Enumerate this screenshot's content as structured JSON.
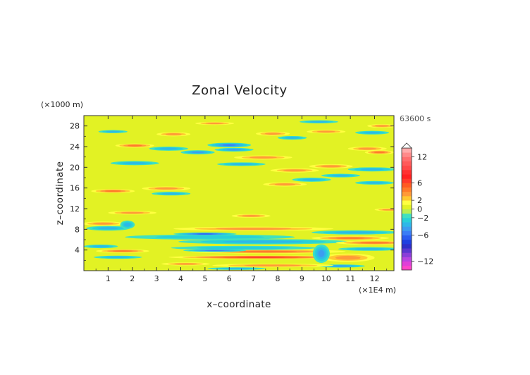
{
  "chart_data": {
    "type": "heatmap",
    "title": "Zonal Velocity",
    "xlabel": "x–coordinate",
    "ylabel": "z–coordinate",
    "x_unit": "(×1E4 m)",
    "y_unit": "(×1000 m)",
    "time_label": "63600 s",
    "xlim": [
      0,
      12.8
    ],
    "ylim": [
      0,
      30
    ],
    "x_ticks": [
      1,
      2,
      3,
      4,
      5,
      6,
      7,
      8,
      9,
      10,
      11,
      12
    ],
    "y_ticks": [
      4,
      8,
      12,
      16,
      20,
      24,
      28
    ],
    "colorbar": {
      "levels": [
        -14,
        -13,
        -12,
        -11,
        -10,
        -9,
        -8,
        -7,
        -6,
        -5,
        -4,
        -3,
        -2,
        -1,
        0,
        1,
        2,
        3,
        4,
        5,
        6,
        7,
        8,
        9,
        10,
        11,
        12,
        13,
        14
      ],
      "colors": [
        "#ff44c8",
        "#e040d8",
        "#b844e0",
        "#8a3ed8",
        "#5a36d0",
        "#2e2ec8",
        "#1f3fe0",
        "#2a5cf0",
        "#3a7df6",
        "#3c9cf0",
        "#2eb8e8",
        "#28d0d8",
        "#40e0c0",
        "#b8ee50",
        "#e2f224",
        "#ffff40",
        "#ffc830",
        "#ff9a38",
        "#ff7a2a",
        "#ff5a22",
        "#ff3a2a",
        "#ff2020",
        "#ff3030",
        "#ff4848",
        "#ff5a5a",
        "#ff6e6e",
        "#ff8a8a",
        "#ffaaaa"
      ],
      "tick_labels": [
        "12",
        "6",
        "2",
        "0",
        "−2",
        "−6",
        "−12"
      ],
      "tick_values": [
        12,
        6,
        2,
        0,
        -2,
        -6,
        -12
      ],
      "extend_max": true
    },
    "anomalies": [
      {
        "x": 7.3,
        "z": 2.6,
        "value": 6,
        "rx": 3.8,
        "rz": 0.35
      },
      {
        "x": 7.6,
        "z": 3.7,
        "value": 4,
        "rx": 3.2,
        "rz": 0.4
      },
      {
        "x": 7.4,
        "z": 5.6,
        "value": -3,
        "rx": 3.5,
        "rz": 0.5
      },
      {
        "x": 5.2,
        "z": 6.5,
        "value": -2,
        "rx": 3.5,
        "rz": 0.5
      },
      {
        "x": 7.0,
        "z": 8.1,
        "value": 3,
        "rx": 3.3,
        "rz": 0.4
      },
      {
        "x": 6.6,
        "z": 4.4,
        "value": -2,
        "rx": 3.0,
        "rz": 0.4
      },
      {
        "x": 5.0,
        "z": 7.1,
        "value": -6,
        "rx": 1.3,
        "rz": 0.3
      },
      {
        "x": 5.4,
        "z": 3.9,
        "value": -5,
        "rx": 1.3,
        "rz": 0.25
      },
      {
        "x": 12.0,
        "z": 5.4,
        "value": 4,
        "rx": 1.6,
        "rz": 0.4
      },
      {
        "x": 11.0,
        "z": 6.3,
        "value": 4,
        "rx": 1.6,
        "rz": 0.4
      },
      {
        "x": 11.2,
        "z": 7.4,
        "value": -3,
        "rx": 1.8,
        "rz": 0.4
      },
      {
        "x": 11.8,
        "z": 4.2,
        "value": -3,
        "rx": 1.3,
        "rz": 0.35
      },
      {
        "x": 10.9,
        "z": 2.5,
        "value": 3,
        "rx": 1.1,
        "rz": 0.8
      },
      {
        "x": 9.8,
        "z": 3.3,
        "value": -4,
        "rx": 0.35,
        "rz": 1.8
      },
      {
        "x": 10.6,
        "z": 0.9,
        "value": -4,
        "rx": 1.0,
        "rz": 0.3
      },
      {
        "x": 1.0,
        "z": 8.2,
        "value": -3,
        "rx": 0.9,
        "rz": 0.45
      },
      {
        "x": 0.8,
        "z": 9.1,
        "value": 3,
        "rx": 0.9,
        "rz": 0.4
      },
      {
        "x": 1.8,
        "z": 8.9,
        "value": -3,
        "rx": 0.3,
        "rz": 0.8
      },
      {
        "x": 0.7,
        "z": 4.7,
        "value": -3,
        "rx": 0.7,
        "rz": 0.35
      },
      {
        "x": 1.6,
        "z": 3.8,
        "value": 4,
        "rx": 1.1,
        "rz": 0.35
      },
      {
        "x": 1.4,
        "z": 2.6,
        "value": -3,
        "rx": 1.0,
        "rz": 0.3
      },
      {
        "x": 7.8,
        "z": 1.0,
        "value": 3,
        "rx": 2.5,
        "rz": 0.35
      },
      {
        "x": 6.9,
        "z": 10.6,
        "value": 3,
        "rx": 0.8,
        "rz": 0.35
      },
      {
        "x": 2.0,
        "z": 11.2,
        "value": 3,
        "rx": 1.0,
        "rz": 0.35
      },
      {
        "x": 12.6,
        "z": 11.8,
        "value": 3,
        "rx": 0.6,
        "rz": 0.3
      },
      {
        "x": 1.2,
        "z": 15.4,
        "value": 4,
        "rx": 0.9,
        "rz": 0.4
      },
      {
        "x": 3.4,
        "z": 15.9,
        "value": 3,
        "rx": 1.0,
        "rz": 0.4
      },
      {
        "x": 3.6,
        "z": 14.9,
        "value": -3,
        "rx": 0.8,
        "rz": 0.35
      },
      {
        "x": 8.3,
        "z": 16.7,
        "value": 3,
        "rx": 0.9,
        "rz": 0.4
      },
      {
        "x": 9.4,
        "z": 17.6,
        "value": -3,
        "rx": 0.8,
        "rz": 0.4
      },
      {
        "x": 10.6,
        "z": 18.4,
        "value": -3,
        "rx": 0.8,
        "rz": 0.35
      },
      {
        "x": 12.0,
        "z": 17.0,
        "value": -3,
        "rx": 0.8,
        "rz": 0.35
      },
      {
        "x": 11.9,
        "z": 19.6,
        "value": -3,
        "rx": 1.0,
        "rz": 0.4
      },
      {
        "x": 2.1,
        "z": 20.8,
        "value": -3,
        "rx": 1.0,
        "rz": 0.4
      },
      {
        "x": 6.5,
        "z": 20.6,
        "value": -3,
        "rx": 1.0,
        "rz": 0.35
      },
      {
        "x": 8.7,
        "z": 19.4,
        "value": 3,
        "rx": 1.0,
        "rz": 0.4
      },
      {
        "x": 7.4,
        "z": 21.9,
        "value": 3,
        "rx": 1.2,
        "rz": 0.4
      },
      {
        "x": 10.2,
        "z": 20.2,
        "value": 3,
        "rx": 0.9,
        "rz": 0.4
      },
      {
        "x": 3.5,
        "z": 23.6,
        "value": -3,
        "rx": 0.8,
        "rz": 0.4
      },
      {
        "x": 4.7,
        "z": 22.9,
        "value": -4,
        "rx": 0.7,
        "rz": 0.4
      },
      {
        "x": 6.0,
        "z": 24.3,
        "value": -5,
        "rx": 0.9,
        "rz": 0.45
      },
      {
        "x": 6.2,
        "z": 23.4,
        "value": -4,
        "rx": 0.8,
        "rz": 0.35
      },
      {
        "x": 2.1,
        "z": 24.2,
        "value": 4,
        "rx": 0.8,
        "rz": 0.4
      },
      {
        "x": 3.7,
        "z": 26.4,
        "value": 3,
        "rx": 0.7,
        "rz": 0.4
      },
      {
        "x": 7.8,
        "z": 26.5,
        "value": 3,
        "rx": 0.7,
        "rz": 0.4
      },
      {
        "x": 8.6,
        "z": 25.7,
        "value": -3,
        "rx": 0.6,
        "rz": 0.35
      },
      {
        "x": 11.7,
        "z": 23.6,
        "value": 3,
        "rx": 0.8,
        "rz": 0.4
      },
      {
        "x": 12.2,
        "z": 22.9,
        "value": 4,
        "rx": 0.6,
        "rz": 0.4
      },
      {
        "x": 10.0,
        "z": 26.9,
        "value": 3,
        "rx": 0.8,
        "rz": 0.35
      },
      {
        "x": 11.9,
        "z": 26.7,
        "value": -3,
        "rx": 0.7,
        "rz": 0.35
      },
      {
        "x": 12.3,
        "z": 28.0,
        "value": 3,
        "rx": 0.6,
        "rz": 0.35
      },
      {
        "x": 1.2,
        "z": 26.9,
        "value": -3,
        "rx": 0.6,
        "rz": 0.3
      },
      {
        "x": 5.4,
        "z": 28.5,
        "value": 3,
        "rx": 0.8,
        "rz": 0.3
      },
      {
        "x": 9.7,
        "z": 28.8,
        "value": -3,
        "rx": 0.8,
        "rz": 0.3
      },
      {
        "x": 6.3,
        "z": 0.4,
        "value": -3,
        "rx": 1.2,
        "rz": 0.25
      },
      {
        "x": 4.2,
        "z": 1.3,
        "value": 3,
        "rx": 1.0,
        "rz": 0.3
      }
    ],
    "grid": false
  }
}
